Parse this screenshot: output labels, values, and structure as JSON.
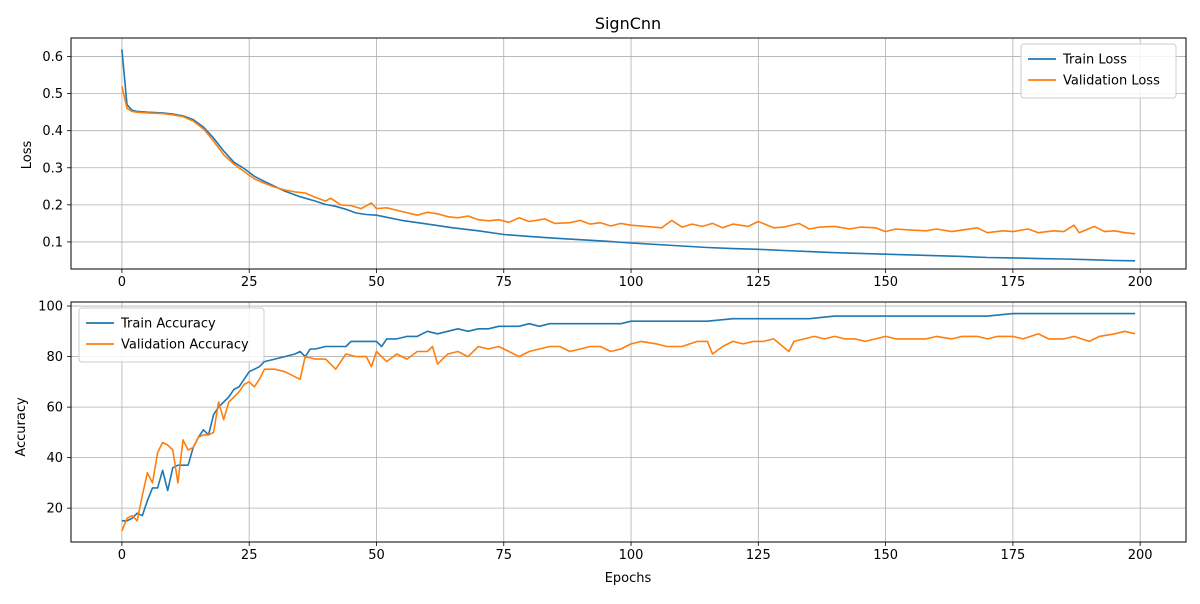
{
  "chart_data": [
    {
      "type": "line",
      "title": "SignCnn",
      "xlabel": "",
      "ylabel": "Loss",
      "xlim": [
        -10,
        209
      ],
      "ylim": [
        0.027,
        0.65
      ],
      "xticks": [
        0,
        25,
        50,
        75,
        100,
        125,
        150,
        175,
        200
      ],
      "yticks": [
        0.1,
        0.2,
        0.3,
        0.4,
        0.5,
        0.6
      ],
      "grid": true,
      "legend": "upper right",
      "series": [
        {
          "name": "Train Loss",
          "color": "#1f77b4",
          "x": [
            0,
            1,
            2,
            3,
            5,
            8,
            10,
            12,
            14,
            16,
            18,
            20,
            22,
            24,
            26,
            28,
            30,
            32,
            35,
            38,
            40,
            42,
            44,
            46,
            48,
            50,
            55,
            60,
            65,
            70,
            75,
            80,
            85,
            90,
            95,
            100,
            105,
            110,
            115,
            120,
            125,
            130,
            135,
            140,
            145,
            150,
            155,
            160,
            165,
            170,
            175,
            180,
            185,
            190,
            195,
            199
          ],
          "y": [
            0.619,
            0.47,
            0.455,
            0.452,
            0.45,
            0.448,
            0.445,
            0.44,
            0.43,
            0.41,
            0.38,
            0.345,
            0.315,
            0.298,
            0.277,
            0.263,
            0.25,
            0.237,
            0.222,
            0.21,
            0.201,
            0.196,
            0.188,
            0.178,
            0.174,
            0.172,
            0.158,
            0.148,
            0.138,
            0.13,
            0.12,
            0.115,
            0.11,
            0.106,
            0.102,
            0.097,
            0.093,
            0.089,
            0.085,
            0.082,
            0.08,
            0.077,
            0.074,
            0.071,
            0.069,
            0.067,
            0.065,
            0.063,
            0.061,
            0.058,
            0.057,
            0.055,
            0.054,
            0.052,
            0.05,
            0.049
          ]
        },
        {
          "name": "Validation Loss",
          "color": "#ff7f0e",
          "x": [
            0,
            1,
            2,
            3,
            5,
            8,
            10,
            12,
            14,
            16,
            18,
            20,
            22,
            24,
            26,
            28,
            30,
            32,
            34,
            36,
            38,
            40,
            41,
            43,
            45,
            47,
            49,
            50,
            52,
            55,
            58,
            60,
            62,
            64,
            66,
            68,
            70,
            72,
            74,
            76,
            78,
            80,
            83,
            85,
            88,
            90,
            92,
            94,
            96,
            98,
            100,
            103,
            106,
            108,
            110,
            112,
            114,
            116,
            118,
            120,
            123,
            125,
            128,
            130,
            133,
            135,
            137,
            140,
            143,
            145,
            148,
            150,
            152,
            155,
            158,
            160,
            163,
            165,
            168,
            170,
            173,
            175,
            178,
            180,
            183,
            185,
            187,
            188,
            191,
            193,
            195,
            197,
            199
          ],
          "y": [
            0.52,
            0.46,
            0.452,
            0.45,
            0.448,
            0.446,
            0.443,
            0.438,
            0.426,
            0.405,
            0.372,
            0.335,
            0.31,
            0.29,
            0.27,
            0.258,
            0.248,
            0.24,
            0.235,
            0.232,
            0.22,
            0.21,
            0.218,
            0.2,
            0.198,
            0.19,
            0.205,
            0.19,
            0.192,
            0.182,
            0.172,
            0.18,
            0.176,
            0.168,
            0.165,
            0.17,
            0.16,
            0.157,
            0.16,
            0.153,
            0.165,
            0.155,
            0.162,
            0.15,
            0.152,
            0.158,
            0.148,
            0.152,
            0.143,
            0.15,
            0.145,
            0.142,
            0.138,
            0.158,
            0.14,
            0.148,
            0.142,
            0.15,
            0.138,
            0.148,
            0.142,
            0.155,
            0.138,
            0.14,
            0.15,
            0.135,
            0.14,
            0.142,
            0.135,
            0.14,
            0.138,
            0.128,
            0.135,
            0.132,
            0.13,
            0.135,
            0.128,
            0.132,
            0.138,
            0.125,
            0.13,
            0.128,
            0.135,
            0.125,
            0.13,
            0.128,
            0.145,
            0.125,
            0.142,
            0.128,
            0.13,
            0.125,
            0.122
          ]
        }
      ]
    },
    {
      "type": "line",
      "title": "",
      "xlabel": "Epochs",
      "ylabel": "Accuracy",
      "xlim": [
        -10,
        209
      ],
      "ylim": [
        6.6,
        101.6
      ],
      "xticks": [
        0,
        25,
        50,
        75,
        100,
        125,
        150,
        175,
        200
      ],
      "yticks": [
        20,
        40,
        60,
        80,
        100
      ],
      "grid": true,
      "legend": "upper left",
      "series": [
        {
          "name": "Train Accuracy",
          "color": "#1f77b4",
          "x": [
            0,
            1,
            2,
            3,
            4,
            5,
            6,
            7,
            8,
            9,
            10,
            11,
            12,
            13,
            14,
            15,
            16,
            17,
            18,
            19,
            20,
            21,
            22,
            23,
            24,
            25,
            27,
            28,
            30,
            32,
            34,
            35,
            36,
            37,
            38,
            40,
            42,
            44,
            45,
            46,
            48,
            50,
            51,
            52,
            54,
            56,
            58,
            60,
            62,
            64,
            66,
            68,
            70,
            72,
            74,
            76,
            78,
            80,
            82,
            84,
            86,
            88,
            90,
            92,
            94,
            96,
            98,
            100,
            105,
            110,
            115,
            120,
            125,
            130,
            135,
            140,
            145,
            150,
            155,
            160,
            165,
            170,
            175,
            180,
            185,
            190,
            195,
            199
          ],
          "y": [
            15,
            15,
            16,
            18,
            17,
            23,
            28,
            28,
            35,
            27,
            36,
            37,
            37,
            37,
            44,
            48,
            51,
            49,
            57,
            60,
            62,
            64,
            67,
            68,
            71,
            74,
            76,
            78,
            79,
            80,
            81,
            82,
            80,
            83,
            83,
            84,
            84,
            84,
            86,
            86,
            86,
            86,
            84,
            87,
            87,
            88,
            88,
            90,
            89,
            90,
            91,
            90,
            91,
            91,
            92,
            92,
            92,
            93,
            92,
            93,
            93,
            93,
            93,
            93,
            93,
            93,
            93,
            94,
            94,
            94,
            94,
            95,
            95,
            95,
            95,
            96,
            96,
            96,
            96,
            96,
            96,
            96,
            97,
            97,
            97,
            97,
            97,
            97
          ]
        },
        {
          "name": "Validation Accuracy",
          "color": "#ff7f0e",
          "x": [
            0,
            1,
            2,
            3,
            4,
            5,
            6,
            7,
            8,
            9,
            10,
            11,
            12,
            13,
            14,
            15,
            16,
            17,
            18,
            19,
            20,
            21,
            22,
            23,
            24,
            25,
            26,
            27,
            28,
            30,
            32,
            34,
            35,
            36,
            38,
            40,
            42,
            44,
            46,
            48,
            49,
            50,
            52,
            54,
            56,
            58,
            60,
            61,
            62,
            64,
            66,
            68,
            70,
            72,
            74,
            76,
            78,
            80,
            82,
            84,
            86,
            88,
            90,
            92,
            94,
            96,
            98,
            100,
            102,
            105,
            107,
            110,
            113,
            115,
            116,
            118,
            120,
            122,
            124,
            126,
            128,
            131,
            132,
            134,
            136,
            138,
            140,
            142,
            144,
            146,
            148,
            150,
            152,
            155,
            158,
            160,
            163,
            165,
            168,
            170,
            172,
            175,
            177,
            180,
            182,
            185,
            187,
            190,
            192,
            195,
            197,
            199
          ],
          "y": [
            11,
            16,
            17,
            15,
            25,
            34,
            30,
            42,
            46,
            45,
            43,
            30,
            47,
            43,
            44,
            48,
            49,
            49,
            50,
            62,
            55,
            62,
            64,
            66,
            69,
            70,
            68,
            71,
            75,
            75,
            74,
            72,
            71,
            80,
            79,
            79,
            75,
            81,
            80,
            80,
            76,
            82,
            78,
            81,
            79,
            82,
            82,
            84,
            77,
            81,
            82,
            80,
            84,
            83,
            84,
            82,
            80,
            82,
            83,
            84,
            84,
            82,
            83,
            84,
            84,
            82,
            83,
            85,
            86,
            85,
            84,
            84,
            86,
            86,
            81,
            84,
            86,
            85,
            86,
            86,
            87,
            82,
            86,
            87,
            88,
            87,
            88,
            87,
            87,
            86,
            87,
            88,
            87,
            87,
            87,
            88,
            87,
            88,
            88,
            87,
            88,
            88,
            87,
            89,
            87,
            87,
            88,
            86,
            88,
            89,
            90,
            89
          ]
        }
      ]
    }
  ]
}
